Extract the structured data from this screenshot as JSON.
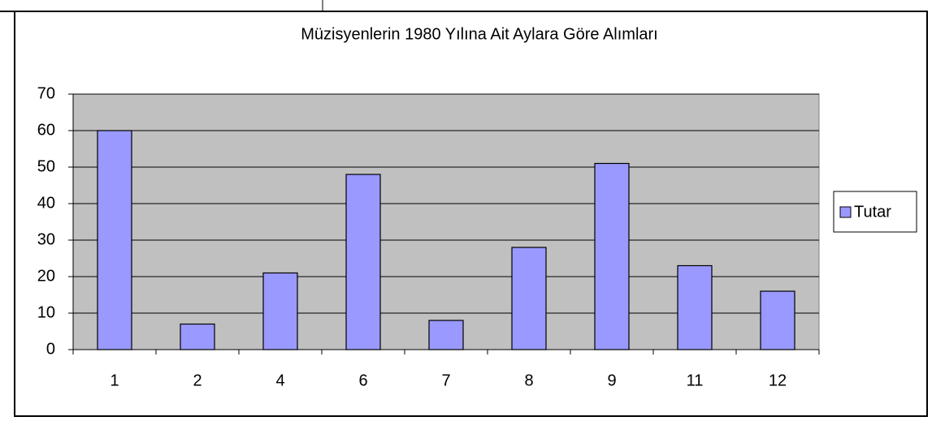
{
  "chart_data": {
    "type": "bar",
    "title": "Müzisyenlerin 1980 Yılına Ait Aylara Göre Alımları",
    "categories": [
      "1",
      "2",
      "4",
      "6",
      "7",
      "8",
      "9",
      "11",
      "12"
    ],
    "series": [
      {
        "name": "Tutar",
        "color": "#9999ff",
        "values": [
          60,
          7,
          21,
          48,
          8,
          28,
          51,
          23,
          16
        ]
      }
    ],
    "ylim": [
      0,
      70
    ],
    "yticks": [
      0,
      10,
      20,
      30,
      40,
      50,
      60,
      70
    ],
    "grid": true,
    "legend": "right"
  }
}
